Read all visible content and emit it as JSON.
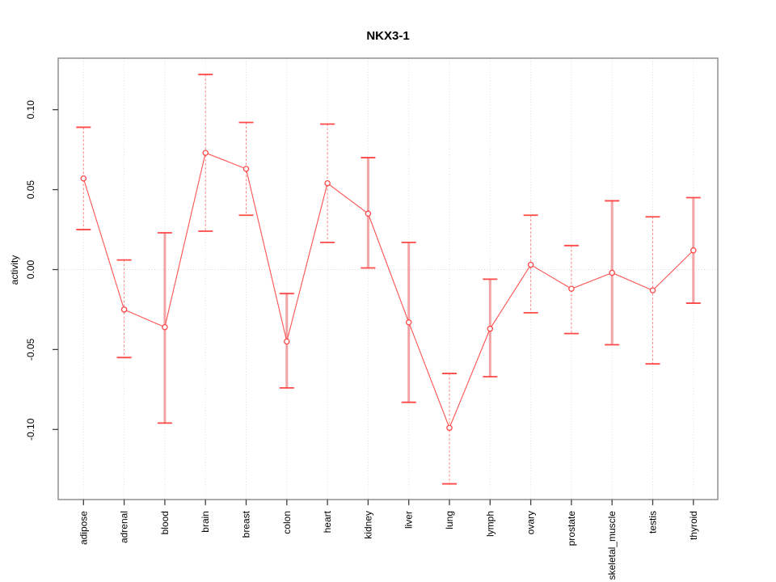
{
  "chart_data": {
    "type": "line",
    "subtype": "error-bar-point-plot",
    "title": "NKX3-1",
    "xlabel": "",
    "ylabel": "activity",
    "categories": [
      "adipose",
      "adrenal",
      "blood",
      "brain",
      "breast",
      "colon",
      "heart",
      "kidney",
      "liver",
      "lung",
      "lymph",
      "ovary",
      "prostate",
      "skeletal_muscle",
      "testis",
      "thyroid"
    ],
    "series": [
      {
        "name": "activity",
        "values": [
          0.057,
          -0.025,
          -0.036,
          0.073,
          0.063,
          -0.045,
          0.054,
          0.035,
          -0.033,
          -0.099,
          -0.037,
          0.003,
          -0.012,
          -0.002,
          -0.013,
          0.012
        ],
        "upper": [
          0.089,
          0.006,
          0.023,
          0.122,
          0.092,
          -0.015,
          0.091,
          0.07,
          0.017,
          -0.065,
          -0.006,
          0.034,
          0.015,
          0.043,
          0.033,
          0.045
        ],
        "lower": [
          0.025,
          -0.055,
          -0.096,
          0.024,
          0.034,
          -0.074,
          0.017,
          0.001,
          -0.083,
          -0.134,
          -0.067,
          -0.027,
          -0.04,
          -0.047,
          -0.059,
          -0.021
        ],
        "stem_styles": [
          "thin",
          "thin",
          "thick",
          "thin",
          "thin",
          "thick",
          "thin",
          "thick",
          "thick",
          "thin",
          "thick",
          "thin",
          "thin",
          "thick",
          "thin",
          "thick"
        ]
      }
    ],
    "y_ticks": [
      0.1,
      0.05,
      0.0,
      -0.05,
      -0.1
    ],
    "y_tick_labels": [
      "0.10",
      "0.05",
      "0.00",
      "-0.05",
      "-0.10"
    ],
    "ylim": [
      -0.1435,
      0.132
    ],
    "grid": {
      "vertical_dotted": true,
      "horizontal_zero_dotted": true
    },
    "legend": null
  },
  "colors": {
    "series_line": "#ff5252",
    "cap": "#ff4747",
    "stem_thin": "#ff8080",
    "stem_thick": "#f2a3a3",
    "marker_stroke": "#ff4747",
    "marker_fill": "#ffffff",
    "grid_line": "#dedede",
    "zero_line": "#d6d6d6",
    "frame": "#8f8f8f",
    "axis_tick": "#3f3f3f",
    "text": "#000000"
  }
}
